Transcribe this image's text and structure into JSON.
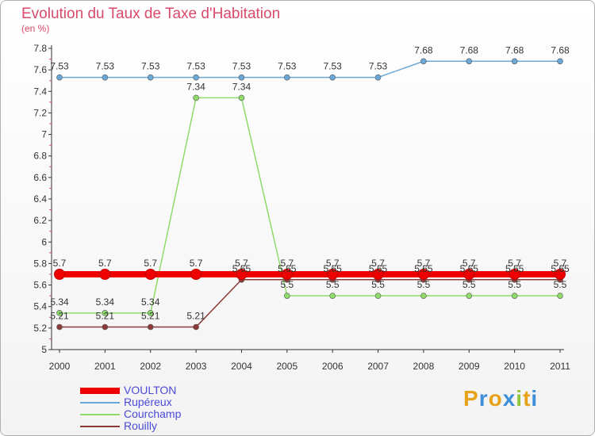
{
  "title": "Evolution du Taux de Taxe d'Habitation",
  "subtitle": "(en %)",
  "logo": "Proxiti",
  "chart_data": {
    "type": "line",
    "title": "Evolution du Taux de Taxe d'Habitation",
    "subtitle": "(en %)",
    "xlabel": "",
    "ylabel": "",
    "ylim": [
      5,
      7.8
    ],
    "yticks": [
      "5",
      "5.2",
      "5.4",
      "5.6",
      "5.8",
      "6",
      "6.2",
      "6.4",
      "6.6",
      "6.8",
      "7",
      "7.2",
      "7.4",
      "7.6",
      "7.8"
    ],
    "categories": [
      "2000",
      "2001",
      "2002",
      "2003",
      "2004",
      "2005",
      "2006",
      "2007",
      "2008",
      "2009",
      "2010",
      "2011"
    ],
    "grid": false,
    "legend": "bottom-left",
    "series": [
      {
        "name": "Rupéreux",
        "color": "#6aa8d8",
        "values": [
          7.53,
          7.53,
          7.53,
          7.53,
          7.53,
          7.53,
          7.53,
          7.53,
          7.68,
          7.68,
          7.68,
          7.68
        ],
        "labels": [
          "7.53",
          "7.53",
          "7.53",
          "7.53",
          "7.53",
          "7.53",
          "7.53",
          "7.53",
          "7.68",
          "7.68",
          "7.68",
          "7.68"
        ]
      },
      {
        "name": "Courchamp",
        "color": "#8fdb6a",
        "values": [
          5.34,
          5.34,
          5.34,
          7.34,
          7.34,
          5.5,
          5.5,
          5.5,
          5.5,
          5.5,
          5.5,
          5.5
        ],
        "labels": [
          "5.34",
          "5.34",
          "5.34",
          "7.34",
          "7.34",
          "5.5",
          "5.5",
          "5.5",
          "5.5",
          "5.5",
          "5.5",
          "5.5"
        ]
      },
      {
        "name": "Rouilly",
        "color": "#8b3a3a",
        "values": [
          5.21,
          5.21,
          5.21,
          5.21,
          5.65,
          5.65,
          5.65,
          5.65,
          5.65,
          5.65,
          5.65,
          5.65
        ],
        "labels": [
          "5.21",
          "5.21",
          "5.21",
          "5.21",
          "5.65",
          "5.65",
          "5.65",
          "5.65",
          "5.65",
          "5.65",
          "5.65",
          "5.65"
        ]
      },
      {
        "name": "VOULTON",
        "color": "#ee0000",
        "values": [
          5.7,
          5.7,
          5.7,
          5.7,
          5.7,
          5.7,
          5.7,
          5.7,
          5.7,
          5.7,
          5.7,
          5.7
        ],
        "labels": [
          "5.7",
          "5.7",
          "5.7",
          "5.7",
          "5.7",
          "5.7",
          "5.7",
          "5.7",
          "5.7",
          "5.7",
          "5.7",
          "5.7"
        ]
      }
    ]
  }
}
